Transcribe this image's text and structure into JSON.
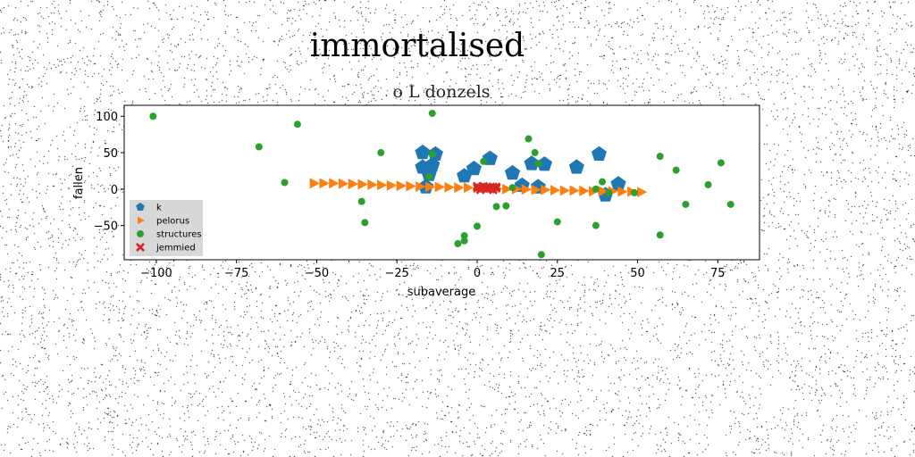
{
  "chart_data": {
    "type": "scatter",
    "title": "immortalised",
    "subtitle": "o L donzels",
    "xlabel": "subaverage",
    "ylabel": "fallen",
    "xlim": [
      -110,
      88
    ],
    "ylim": [
      -97,
      115
    ],
    "xticks": [
      -100,
      -75,
      -50,
      -25,
      0,
      25,
      50,
      75
    ],
    "xtick_labels": [
      "−100",
      "−75",
      "−50",
      "−25",
      "0",
      "25",
      "50",
      "75"
    ],
    "yticks": [
      100,
      50,
      0,
      -50
    ],
    "ytick_labels": [
      "100",
      "50",
      "0",
      "−50"
    ],
    "grid": false,
    "legend_position": "lower-left",
    "series": [
      {
        "name": "k",
        "marker": "pentagon",
        "color": "#1f77b4",
        "points": [
          [
            -17,
            50
          ],
          [
            -13,
            48
          ],
          [
            -17,
            30
          ],
          [
            -14,
            33
          ],
          [
            -15,
            20
          ],
          [
            -16,
            3
          ],
          [
            -4,
            18
          ],
          [
            -1,
            28
          ],
          [
            4,
            42
          ],
          [
            11,
            22
          ],
          [
            14,
            5
          ],
          [
            19,
            3
          ],
          [
            17,
            35
          ],
          [
            21,
            34
          ],
          [
            31,
            30
          ],
          [
            38,
            48
          ],
          [
            40,
            -8
          ],
          [
            44,
            7
          ]
        ]
      },
      {
        "name": "pelorus",
        "marker": "triangle-right",
        "color": "#ff7f0e",
        "points": [
          [
            -51,
            8
          ],
          [
            -48,
            8
          ],
          [
            -45,
            8
          ],
          [
            -42,
            7.5
          ],
          [
            -39,
            7
          ],
          [
            -36,
            6.5
          ],
          [
            -33,
            6
          ],
          [
            -30,
            5.5
          ],
          [
            -27,
            5
          ],
          [
            -24,
            4.5
          ],
          [
            -21,
            4
          ],
          [
            -18,
            3.5
          ],
          [
            -15,
            3
          ],
          [
            -12,
            3
          ],
          [
            -9,
            2.5
          ],
          [
            -6,
            2
          ],
          [
            -3,
            2
          ],
          [
            0,
            1.5
          ],
          [
            3,
            1
          ],
          [
            6,
            0.5
          ],
          [
            9,
            0
          ],
          [
            12,
            0
          ],
          [
            15,
            -0.5
          ],
          [
            18,
            -1
          ],
          [
            21,
            -1
          ],
          [
            24,
            -1.5
          ],
          [
            27,
            -2
          ],
          [
            30,
            -2
          ],
          [
            33,
            -2.5
          ],
          [
            36,
            -3
          ],
          [
            39,
            -3
          ],
          [
            42,
            -3
          ],
          [
            45,
            -3.5
          ],
          [
            48,
            -3.5
          ],
          [
            51,
            -4
          ]
        ]
      },
      {
        "name": "structures",
        "marker": "circle",
        "color": "#2ca02c",
        "points": [
          [
            -101,
            100
          ],
          [
            -56,
            89
          ],
          [
            -68,
            58
          ],
          [
            -60,
            9
          ],
          [
            -30,
            50
          ],
          [
            -36,
            -17
          ],
          [
            -35,
            -46
          ],
          [
            -14,
            104
          ],
          [
            -14,
            48
          ],
          [
            -15,
            17
          ],
          [
            -6,
            -75
          ],
          [
            -4,
            -64
          ],
          [
            -4,
            -71
          ],
          [
            0,
            -51
          ],
          [
            2,
            38
          ],
          [
            6,
            -24
          ],
          [
            9,
            -23
          ],
          [
            11,
            2
          ],
          [
            16,
            69
          ],
          [
            18,
            50
          ],
          [
            19,
            35
          ],
          [
            20,
            -90
          ],
          [
            25,
            -45
          ],
          [
            37,
            0
          ],
          [
            37,
            -50
          ],
          [
            39,
            10
          ],
          [
            41,
            -5
          ],
          [
            49,
            -5
          ],
          [
            57,
            45
          ],
          [
            57,
            -63
          ],
          [
            62,
            26
          ],
          [
            65,
            -21
          ],
          [
            72,
            6
          ],
          [
            76,
            36
          ],
          [
            79,
            -21
          ]
        ]
      },
      {
        "name": "jemmied",
        "marker": "x",
        "color": "#d62728",
        "points": [
          [
            0,
            4
          ],
          [
            1,
            2
          ],
          [
            2,
            4
          ],
          [
            3,
            3
          ],
          [
            4,
            2
          ],
          [
            5,
            3
          ],
          [
            6,
            1
          ],
          [
            1,
            -1
          ],
          [
            3,
            0
          ],
          [
            5,
            -1
          ],
          [
            2,
            1
          ],
          [
            4,
            1
          ],
          [
            0,
            2
          ],
          [
            6,
            3
          ]
        ]
      }
    ]
  }
}
